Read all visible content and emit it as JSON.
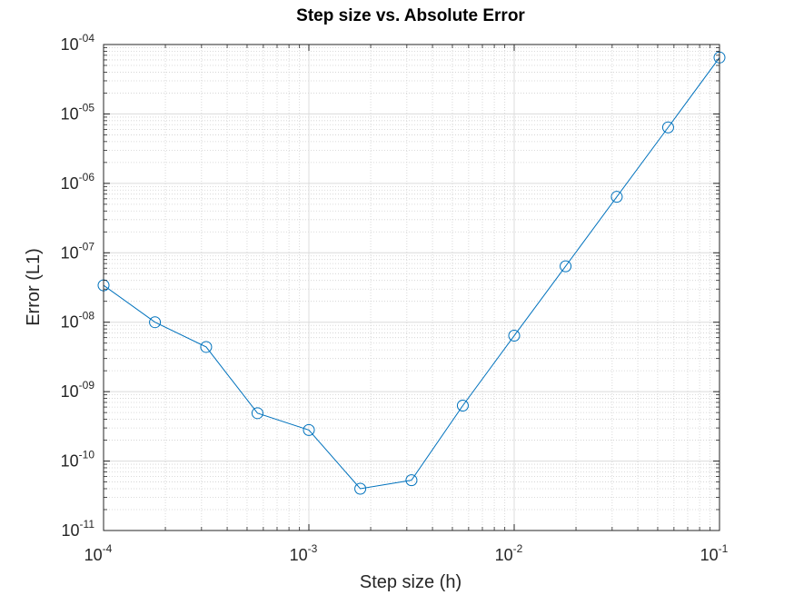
{
  "chart_data": {
    "type": "line",
    "title": "Step size vs. Absolute Error",
    "xlabel": "Step size (h)",
    "ylabel": "Error (L1)",
    "xscale": "log",
    "yscale": "log",
    "xlim": [
      0.0001,
      0.1
    ],
    "ylim": [
      1e-11,
      0.0001
    ],
    "grid": "major and minor",
    "marker": "open circle",
    "x_ticks": [
      {
        "base": "10",
        "exp": "-4",
        "value": 0.0001
      },
      {
        "base": "10",
        "exp": "-3",
        "value": 0.001
      },
      {
        "base": "10",
        "exp": "-2",
        "value": 0.01
      },
      {
        "base": "10",
        "exp": "-1",
        "value": 0.1
      }
    ],
    "y_ticks": [
      {
        "base": "10",
        "exp": "-11",
        "value": 1e-11
      },
      {
        "base": "10",
        "exp": "-10",
        "value": 1e-10
      },
      {
        "base": "10",
        "exp": "-09",
        "value": 1e-09
      },
      {
        "base": "10",
        "exp": "-08",
        "value": 1e-08
      },
      {
        "base": "10",
        "exp": "-07",
        "value": 1e-07
      },
      {
        "base": "10",
        "exp": "-06",
        "value": 1e-06
      },
      {
        "base": "10",
        "exp": "-05",
        "value": 1e-05
      },
      {
        "base": "10",
        "exp": "-04",
        "value": 0.0001
      }
    ],
    "series": [
      {
        "color": "#0072bd",
        "x": [
          0.0001,
          0.000178,
          0.000316,
          0.000562,
          0.001,
          0.00178,
          0.00316,
          0.00562,
          0.01,
          0.0178,
          0.0316,
          0.0562,
          0.1
        ],
        "y": [
          3.4e-08,
          1e-08,
          4.4e-09,
          4.9e-10,
          2.8e-10,
          4e-11,
          5.3e-11,
          6.3e-10,
          6.4e-09,
          6.4e-08,
          6.4e-07,
          6.4e-06,
          6.5e-05
        ]
      }
    ]
  }
}
